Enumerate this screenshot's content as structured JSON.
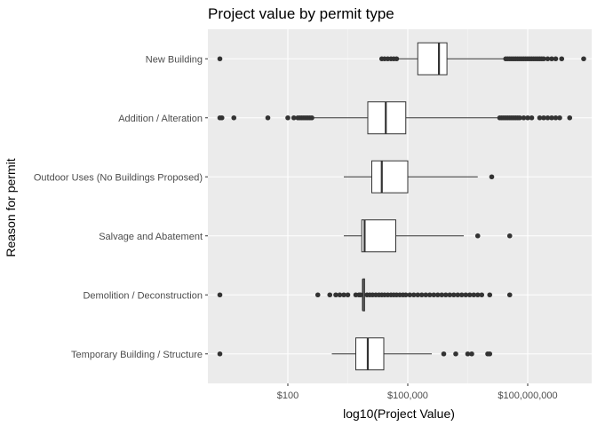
{
  "chart_data": {
    "type": "boxplot",
    "orientation": "horizontal",
    "title": "Project value by permit type",
    "xlabel": "log10(Project Value)",
    "ylabel": "Reason for permit",
    "x_scale": "log10",
    "x_ticks": [
      {
        "value": 100,
        "label": "$100"
      },
      {
        "value": 100000,
        "label": "$100,000"
      },
      {
        "value": 100000000,
        "label": "$100,000,000"
      }
    ],
    "xlim_log10": [
      0.0,
      9.6
    ],
    "grid": true,
    "legend": "none",
    "colors": {
      "panel": "#ebebeb",
      "grid_major": "#ffffff",
      "grid_minor": "#f5f5f5",
      "box_fill": "#ffffff",
      "stroke": "#333333",
      "point": "#333333"
    },
    "categories": [
      "New Building",
      "Addition / Alteration",
      "Outdoor Uses (No Buildings Proposed)",
      "Salvage and Abatement",
      "Demolition / Deconstruction",
      "Temporary Building / Structure"
    ],
    "boxes": [
      {
        "category": "New Building",
        "whisker_low": 4.52,
        "q1": 5.25,
        "median": 5.78,
        "q3": 5.98,
        "whisker_high": 7.42,
        "outliers": [
          0.3,
          4.35,
          4.42,
          4.5,
          4.58,
          4.65,
          4.72,
          7.45,
          7.5,
          7.55,
          7.6,
          7.65,
          7.7,
          7.75,
          7.8,
          7.85,
          7.9,
          7.95,
          8.0,
          8.05,
          8.1,
          8.15,
          8.2,
          8.25,
          8.3,
          8.35,
          8.4,
          8.5,
          8.6,
          8.7,
          8.85,
          9.4
        ]
      },
      {
        "category": "Addition / Alteration",
        "whisker_low": 2.65,
        "q1": 4.0,
        "median": 4.45,
        "q3": 4.95,
        "whisker_high": 7.25,
        "outliers": [
          0.3,
          0.35,
          0.65,
          1.5,
          2.0,
          2.15,
          2.25,
          2.3,
          2.35,
          2.4,
          2.45,
          2.5,
          2.55,
          2.6,
          7.3,
          7.35,
          7.4,
          7.45,
          7.5,
          7.55,
          7.6,
          7.65,
          7.7,
          7.75,
          7.8,
          7.9,
          8.0,
          8.1,
          8.3,
          8.4,
          8.5,
          8.6,
          8.7,
          8.8,
          9.05
        ]
      },
      {
        "category": "Outdoor Uses (No Buildings Proposed)",
        "whisker_low": 3.4,
        "q1": 4.1,
        "median": 4.35,
        "q3": 5.0,
        "whisker_high": 6.75,
        "outliers": [
          7.1
        ]
      },
      {
        "category": "Salvage and Abatement",
        "whisker_low": 3.4,
        "q1": 3.85,
        "median": 3.92,
        "q3": 4.7,
        "whisker_high": 6.4,
        "outliers": [
          6.75,
          7.55
        ]
      },
      {
        "category": "Demolition / Deconstruction",
        "whisker_low": 3.85,
        "q1": 3.88,
        "median": 3.88,
        "q3": 3.92,
        "whisker_high": 3.95,
        "outliers": [
          0.3,
          2.75,
          3.05,
          3.2,
          3.3,
          3.4,
          3.5,
          3.7,
          3.78,
          3.82,
          3.98,
          4.05,
          4.12,
          4.2,
          4.28,
          4.35,
          4.42,
          4.5,
          4.58,
          4.65,
          4.72,
          4.8,
          4.88,
          4.95,
          5.05,
          5.15,
          5.25,
          5.35,
          5.45,
          5.55,
          5.65,
          5.75,
          5.85,
          5.95,
          6.05,
          6.15,
          6.25,
          6.35,
          6.45,
          6.55,
          6.65,
          6.75,
          6.85,
          7.05,
          7.55
        ]
      },
      {
        "category": "Temporary Building / Structure",
        "whisker_low": 3.1,
        "q1": 3.7,
        "median": 4.0,
        "q3": 4.4,
        "whisker_high": 5.6,
        "outliers": [
          0.3,
          5.9,
          6.2,
          6.5,
          6.6,
          7.0,
          7.05
        ]
      }
    ]
  }
}
